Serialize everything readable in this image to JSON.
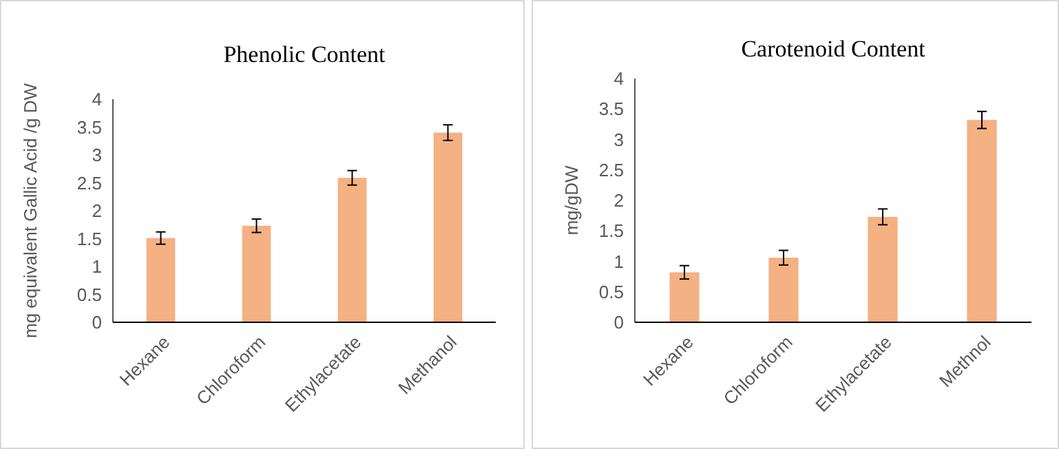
{
  "chart_data": [
    {
      "type": "bar",
      "title": "Phenolic Content",
      "ylabel": "mg equivalent Gallic Acid /g DW",
      "categories": [
        "Hexane",
        "Chloroform",
        "Ethylacetate",
        "Methanol"
      ],
      "values": [
        1.51,
        1.73,
        2.59,
        3.4
      ],
      "errors": [
        0.11,
        0.12,
        0.13,
        0.14
      ],
      "color": "#f4b183",
      "ylim": [
        0,
        4
      ],
      "yticks": [
        0,
        0.5,
        1,
        1.5,
        2,
        2.5,
        3,
        3.5,
        4
      ],
      "grid": false
    },
    {
      "type": "bar",
      "title": "Carotenoid Content",
      "ylabel": "mg/gDW",
      "categories": [
        "Hexane",
        "Chloroform",
        "Ethylacetate",
        "Methnol"
      ],
      "values": [
        0.82,
        1.06,
        1.73,
        3.32
      ],
      "errors": [
        0.11,
        0.12,
        0.13,
        0.14
      ],
      "color": "#f4b183",
      "ylim": [
        0,
        4
      ],
      "yticks": [
        0,
        0.5,
        1,
        1.5,
        2,
        2.5,
        3,
        3.5,
        4
      ],
      "grid": false
    }
  ]
}
